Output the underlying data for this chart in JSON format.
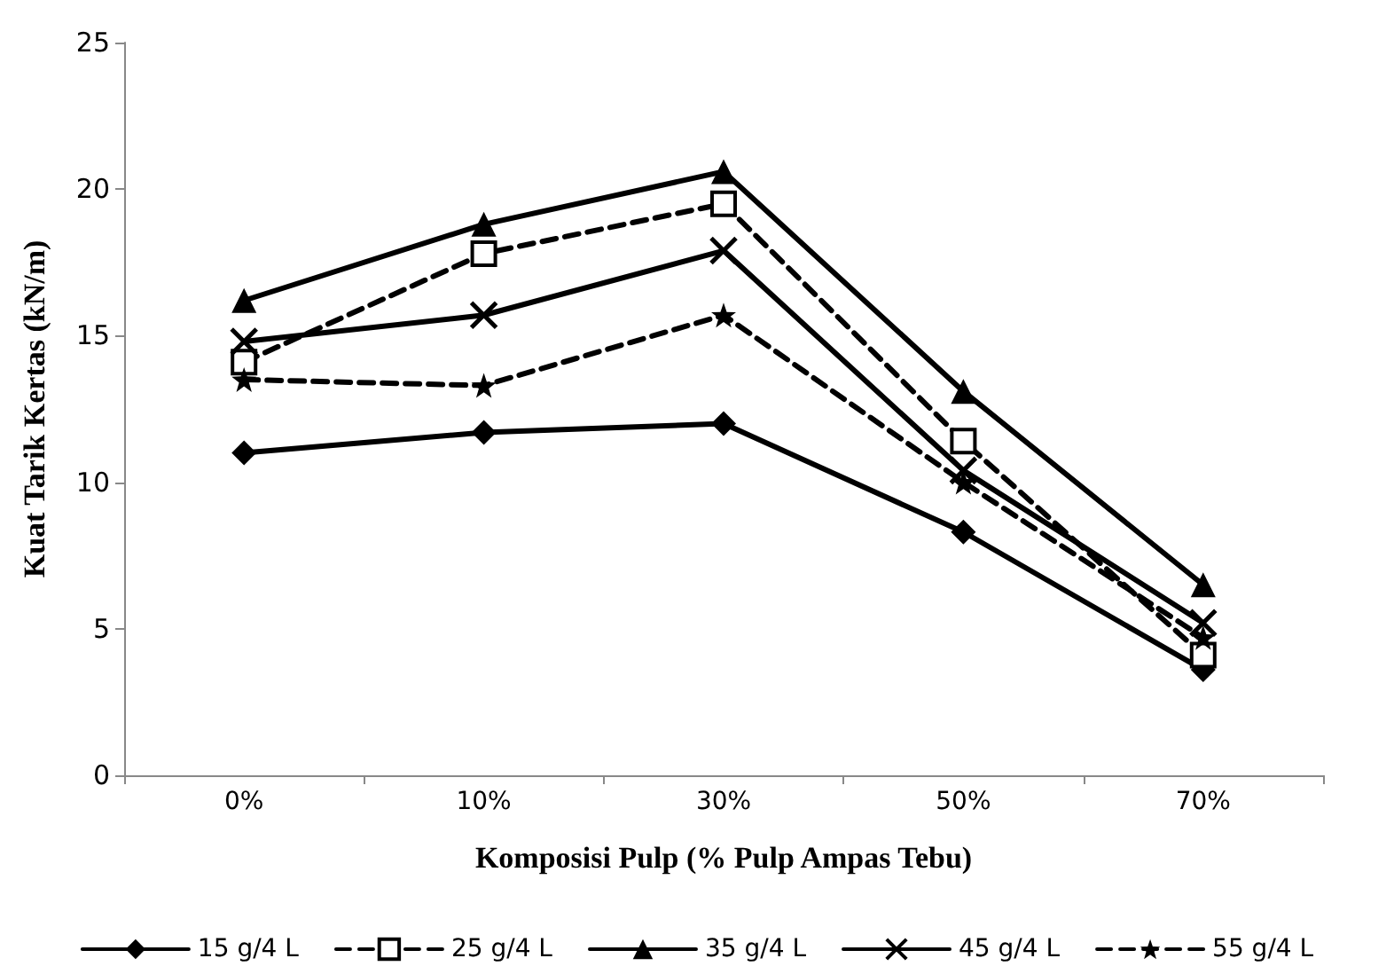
{
  "chart_data": {
    "type": "line",
    "xlabel": "Komposisi Pulp (% Pulp Ampas Tebu)",
    "ylabel": "Kuat Tarik Kertas (kN/m)",
    "categories": [
      "0%",
      "10%",
      "30%",
      "50%",
      "70%"
    ],
    "series": [
      {
        "name": "15 g/4 L",
        "color": "#000000",
        "marker": "diamond",
        "line_style": "solid",
        "values": [
          11.0,
          11.7,
          12.0,
          8.3,
          3.6
        ]
      },
      {
        "name": "25 g/4 L",
        "color": "#000000",
        "marker": "square",
        "line_style": "dashed",
        "values": [
          14.1,
          17.8,
          19.5,
          11.4,
          4.1
        ]
      },
      {
        "name": "35 g/4 L",
        "color": "#000000",
        "marker": "triangle",
        "line_style": "solid",
        "values": [
          16.2,
          18.8,
          20.6,
          13.1,
          6.5
        ]
      },
      {
        "name": "45 g/4 L",
        "color": "#000000",
        "marker": "cross",
        "line_style": "solid",
        "values": [
          14.8,
          15.7,
          17.9,
          10.4,
          5.2
        ]
      },
      {
        "name": "55 g/4 L",
        "color": "#000000",
        "marker": "star",
        "line_style": "dashed",
        "values": [
          13.5,
          13.3,
          15.7,
          10.0,
          4.7
        ]
      }
    ],
    "ylim": [
      0,
      25
    ],
    "yticks": [
      0,
      5,
      10,
      15,
      20,
      25
    ],
    "grid": false,
    "legend": "bottom"
  }
}
